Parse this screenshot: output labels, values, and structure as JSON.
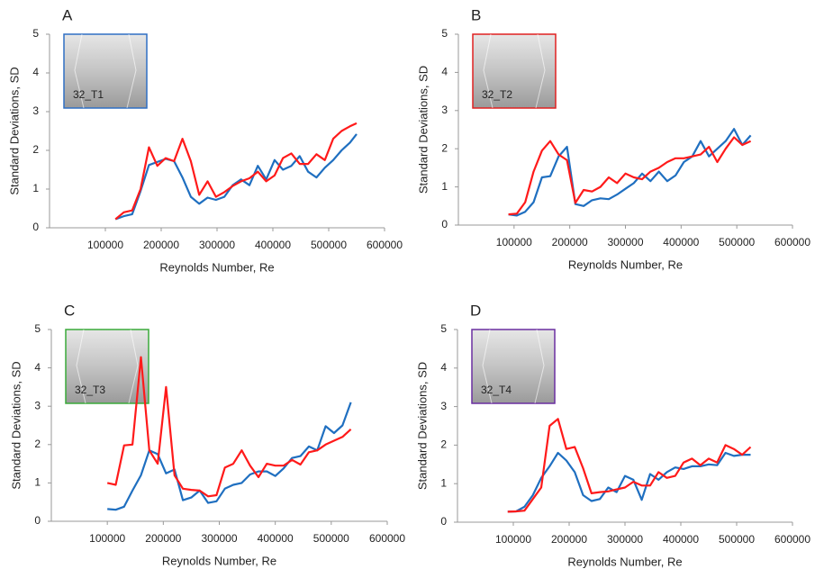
{
  "chart_data": [
    {
      "type": "line",
      "title": "A",
      "inset_label": "32_T1",
      "inset_color": "#2e6fc4",
      "x_label": "Reynolds Number, Re",
      "y_label": "Standard Deviations, SD",
      "x": [
        118000,
        133000,
        148000,
        163000,
        178000,
        193000,
        208000,
        223000,
        238000,
        253000,
        268000,
        283000,
        298000,
        313000,
        328000,
        343000,
        358000,
        373000,
        388000,
        403000,
        418000,
        433000,
        448000,
        463000,
        478000,
        493000,
        508000,
        523000,
        538000,
        550000
      ],
      "series": [
        {
          "color": "#1f6fc0",
          "values": [
            0.22,
            0.3,
            0.35,
            0.95,
            1.62,
            1.7,
            1.78,
            1.72,
            1.3,
            0.8,
            0.62,
            0.78,
            0.72,
            0.8,
            1.1,
            1.25,
            1.1,
            1.6,
            1.25,
            1.75,
            1.5,
            1.6,
            1.85,
            1.45,
            1.3,
            1.55,
            1.75,
            2.0,
            2.2,
            2.42
          ]
        },
        {
          "color": "#ff1a1a",
          "values": [
            0.22,
            0.4,
            0.45,
            1.0,
            2.08,
            1.6,
            1.8,
            1.72,
            2.3,
            1.72,
            0.85,
            1.2,
            0.8,
            0.92,
            1.08,
            1.2,
            1.28,
            1.45,
            1.2,
            1.35,
            1.8,
            1.92,
            1.65,
            1.65,
            1.9,
            1.75,
            2.3,
            2.5,
            2.62,
            2.7
          ]
        }
      ],
      "xlim": [
        0,
        600000
      ],
      "xticks": [
        100000,
        200000,
        300000,
        400000,
        500000,
        600000
      ],
      "ylim": [
        0,
        5
      ],
      "yticks": [
        0,
        1,
        2,
        3,
        4,
        5
      ]
    },
    {
      "type": "line",
      "title": "B",
      "inset_label": "32_T2",
      "inset_color": "#e02020",
      "x_label": "Reynolds Number, Re",
      "y_label": "Standard Deviations, SD",
      "x": [
        90000,
        105000,
        120000,
        135000,
        150000,
        165000,
        180000,
        195000,
        210000,
        225000,
        240000,
        255000,
        270000,
        285000,
        300000,
        315000,
        330000,
        345000,
        360000,
        375000,
        390000,
        405000,
        420000,
        435000,
        450000,
        465000,
        480000,
        495000,
        510000,
        525000
      ],
      "series": [
        {
          "color": "#1f6fc0",
          "values": [
            0.28,
            0.25,
            0.35,
            0.6,
            1.25,
            1.28,
            1.8,
            2.05,
            0.55,
            0.5,
            0.65,
            0.7,
            0.68,
            0.8,
            0.95,
            1.1,
            1.35,
            1.15,
            1.4,
            1.15,
            1.3,
            1.65,
            1.8,
            2.2,
            1.8,
            2.0,
            2.2,
            2.52,
            2.1,
            2.35
          ]
        },
        {
          "color": "#ff1a1a",
          "values": [
            0.28,
            0.3,
            0.6,
            1.4,
            1.95,
            2.2,
            1.85,
            1.7,
            0.58,
            0.92,
            0.88,
            1.0,
            1.25,
            1.1,
            1.35,
            1.25,
            1.2,
            1.4,
            1.5,
            1.65,
            1.75,
            1.75,
            1.8,
            1.85,
            2.05,
            1.65,
            2.0,
            2.3,
            2.1,
            2.2
          ]
        }
      ],
      "xlim": [
        0,
        600000
      ],
      "xticks": [
        100000,
        200000,
        300000,
        400000,
        500000,
        600000
      ],
      "ylim": [
        0,
        5
      ],
      "yticks": [
        0,
        1,
        2,
        3,
        4,
        5
      ]
    },
    {
      "type": "line",
      "title": "C",
      "inset_label": "32_T3",
      "inset_color": "#3aaa3a",
      "x_label": "Reynolds Number, Re",
      "y_label": "Standard Deviations, SD",
      "x": [
        100000,
        115000,
        130000,
        145000,
        160000,
        175000,
        190000,
        205000,
        220000,
        235000,
        250000,
        265000,
        280000,
        295000,
        310000,
        325000,
        340000,
        355000,
        370000,
        385000,
        400000,
        415000,
        430000,
        445000,
        460000,
        475000,
        490000,
        505000,
        520000,
        535000
      ],
      "series": [
        {
          "color": "#1f6fc0",
          "values": [
            0.32,
            0.3,
            0.38,
            0.8,
            1.2,
            1.85,
            1.75,
            1.25,
            1.35,
            0.55,
            0.62,
            0.8,
            0.48,
            0.52,
            0.85,
            0.95,
            1.0,
            1.22,
            1.3,
            1.3,
            1.18,
            1.38,
            1.65,
            1.7,
            1.95,
            1.85,
            2.48,
            2.3,
            2.5,
            3.1
          ]
        },
        {
          "color": "#ff1a1a",
          "values": [
            1.0,
            0.95,
            1.98,
            2.0,
            4.28,
            1.85,
            1.5,
            3.5,
            1.2,
            0.85,
            0.82,
            0.8,
            0.65,
            0.68,
            1.4,
            1.5,
            1.85,
            1.45,
            1.15,
            1.5,
            1.45,
            1.45,
            1.6,
            1.48,
            1.8,
            1.85,
            2.0,
            2.1,
            2.2,
            2.4
          ]
        }
      ],
      "xlim": [
        0,
        600000
      ],
      "xticks": [
        100000,
        200000,
        300000,
        400000,
        500000,
        600000
      ],
      "ylim": [
        0,
        5
      ],
      "yticks": [
        0,
        1,
        2,
        3,
        4,
        5
      ]
    },
    {
      "type": "line",
      "title": "D",
      "inset_label": "32_T4",
      "inset_color": "#6a2fa0",
      "x_label": "Reynolds Number, Re",
      "y_label": "Standard Deviations, SD",
      "x": [
        90000,
        105000,
        120000,
        135000,
        150000,
        165000,
        180000,
        195000,
        210000,
        225000,
        240000,
        255000,
        270000,
        285000,
        300000,
        315000,
        330000,
        345000,
        360000,
        375000,
        390000,
        405000,
        420000,
        435000,
        450000,
        465000,
        480000,
        495000,
        510000,
        525000
      ],
      "series": [
        {
          "color": "#1f6fc0",
          "values": [
            0.27,
            0.28,
            0.4,
            0.7,
            1.15,
            1.45,
            1.8,
            1.6,
            1.3,
            0.7,
            0.55,
            0.6,
            0.9,
            0.78,
            1.2,
            1.1,
            0.58,
            1.25,
            1.1,
            1.3,
            1.42,
            1.38,
            1.45,
            1.45,
            1.5,
            1.48,
            1.8,
            1.72,
            1.75,
            1.75
          ]
        },
        {
          "color": "#ff1a1a",
          "values": [
            0.27,
            0.28,
            0.3,
            0.6,
            0.9,
            2.5,
            2.68,
            1.9,
            1.95,
            1.4,
            0.75,
            0.78,
            0.8,
            0.85,
            0.9,
            1.05,
            0.95,
            0.95,
            1.3,
            1.15,
            1.2,
            1.55,
            1.65,
            1.48,
            1.65,
            1.55,
            2.0,
            1.9,
            1.75,
            1.95
          ]
        }
      ],
      "xlim": [
        0,
        600000
      ],
      "xticks": [
        100000,
        200000,
        300000,
        400000,
        500000,
        600000
      ],
      "ylim": [
        0,
        5
      ],
      "yticks": [
        0,
        1,
        2,
        3,
        4,
        5
      ]
    }
  ]
}
